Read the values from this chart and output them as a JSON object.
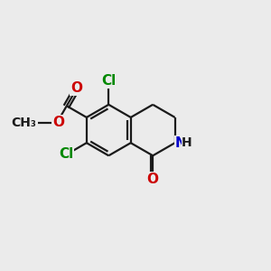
{
  "bg_color": "#ebebeb",
  "bond_color": "#1a1a1a",
  "bond_width": 1.6,
  "atom_colors": {
    "O": "#cc0000",
    "N": "#0000cc",
    "Cl": "#008800",
    "C": "#1a1a1a"
  },
  "font_size": 10,
  "figsize": [
    3.0,
    3.0
  ],
  "dpi": 100
}
